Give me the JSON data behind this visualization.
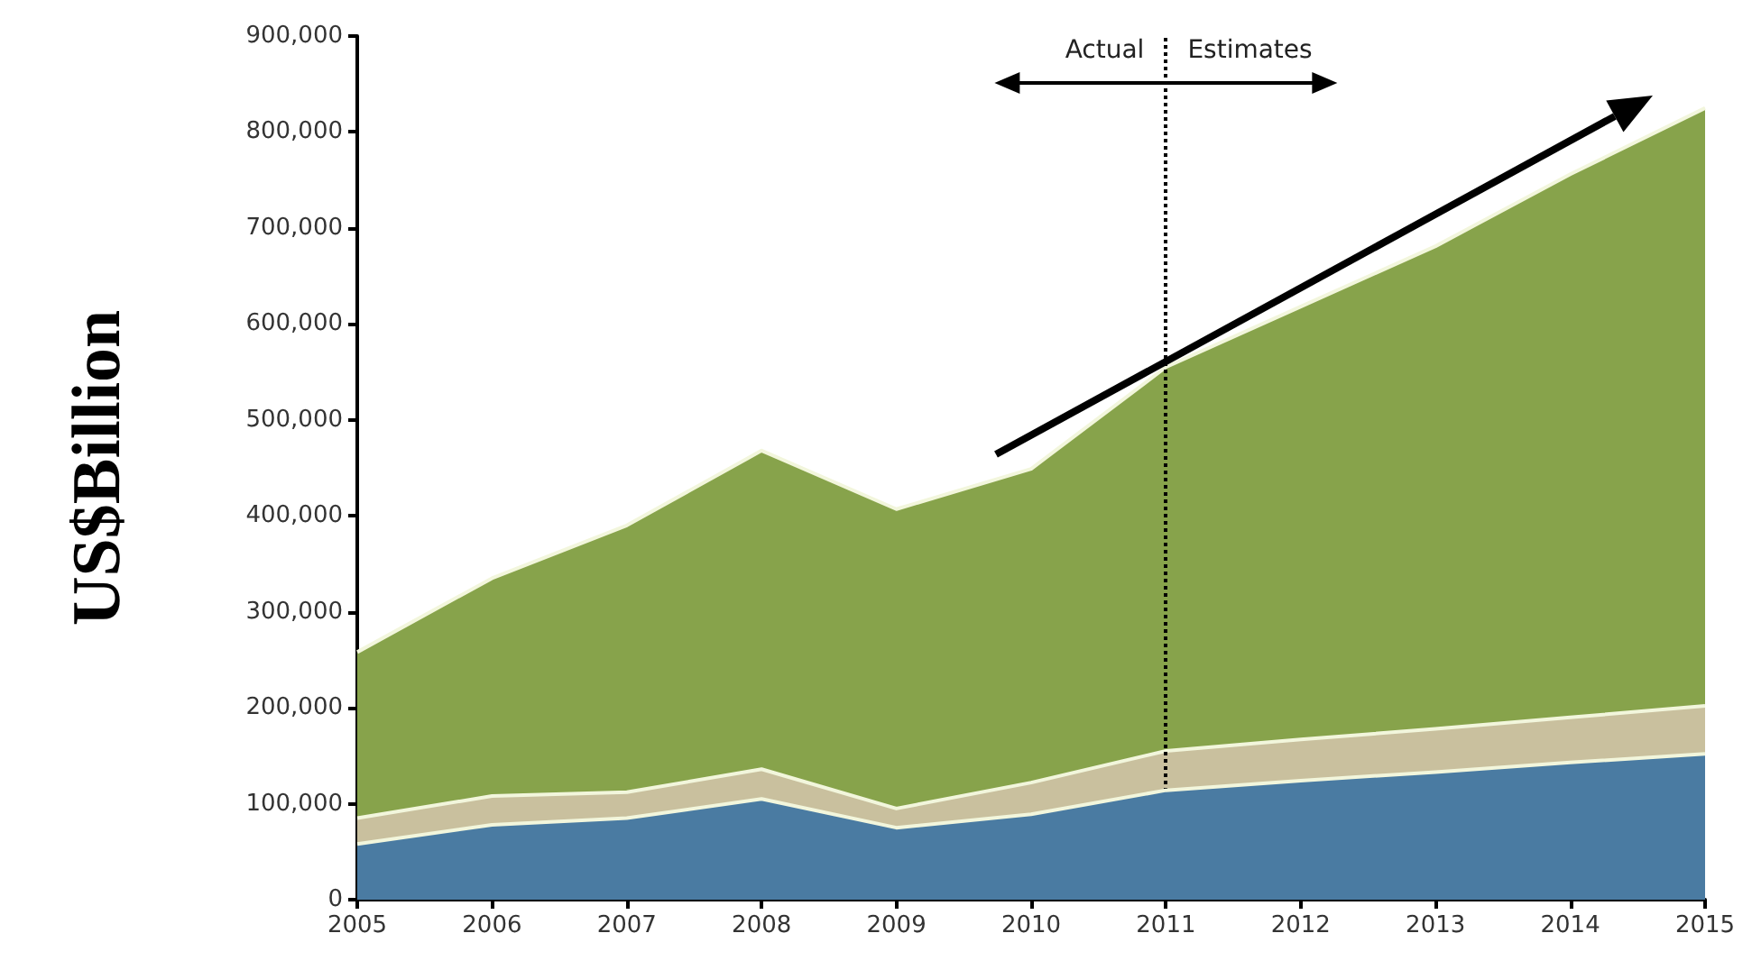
{
  "chart_data": {
    "type": "area",
    "stacked": true,
    "ylabel": "US$Billion",
    "x": [
      2005,
      2006,
      2007,
      2008,
      2009,
      2010,
      2011,
      2012,
      2013,
      2014,
      2015
    ],
    "series": [
      {
        "color": "#4a7ba2",
        "values": [
          58000,
          78000,
          85000,
          105000,
          75000,
          89000,
          114000,
          124000,
          133000,
          143000,
          152000
        ]
      },
      {
        "color": "#c9c09e",
        "values": [
          27000,
          30000,
          27000,
          31000,
          20000,
          33000,
          41000,
          43000,
          45000,
          47000,
          50000
        ]
      },
      {
        "color": "#87a34b",
        "values": [
          173000,
          227000,
          278000,
          332000,
          312000,
          327000,
          400000,
          451000,
          503000,
          566000,
          623000
        ]
      }
    ],
    "xlim": [
      2005,
      2015
    ],
    "xticks": [
      2005,
      2006,
      2007,
      2008,
      2009,
      2010,
      2011,
      2012,
      2013,
      2014,
      2015
    ],
    "ylim": [
      0,
      900000
    ],
    "yticks": [
      0,
      {
        "value": 100000,
        "label": "100,000"
      },
      {
        "value": 200000,
        "label": "200,000"
      },
      {
        "value": 300000,
        "label": "300,000"
      },
      {
        "value": 400000,
        "label": "400,000"
      },
      {
        "value": 500000,
        "label": "500,000"
      },
      {
        "value": 600000,
        "label": "600,000"
      },
      {
        "value": 700000,
        "label": "700,000"
      },
      {
        "value": 800000,
        "label": "800,000"
      },
      {
        "value": 900000,
        "label": "900,000"
      }
    ],
    "ref_lines": [
      {
        "axis": "x",
        "value": 2011,
        "color": "#000000",
        "line_style": "dotted"
      }
    ],
    "annotations": [
      "Actual",
      "Estimates"
    ],
    "grid": false,
    "marker": "none"
  }
}
